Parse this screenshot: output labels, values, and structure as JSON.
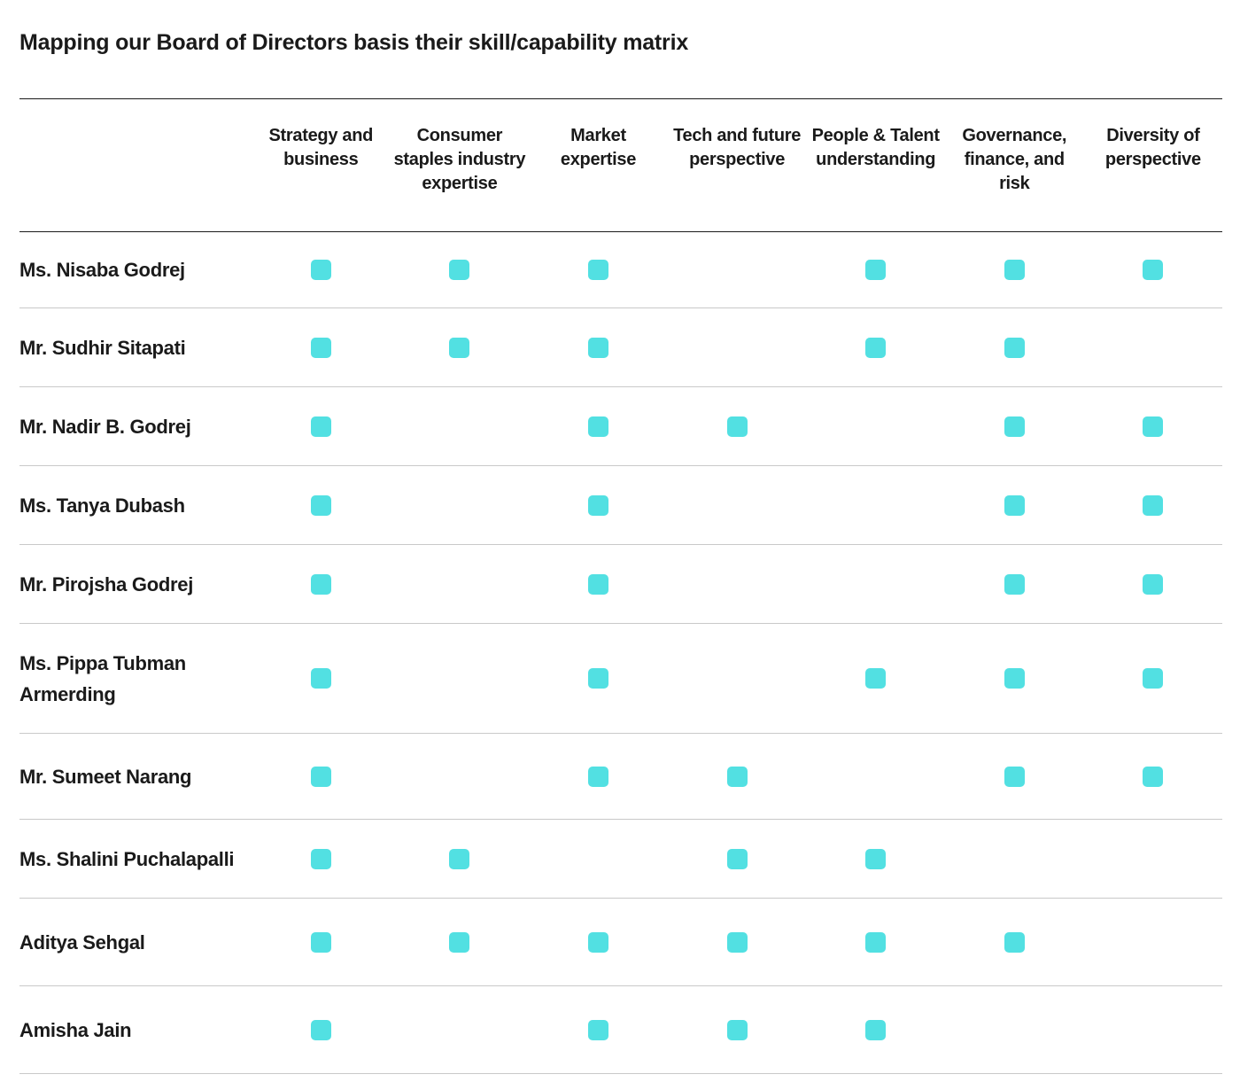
{
  "title": "Mapping our Board of Directors basis their skill/capability matrix",
  "accent_color": "#52e0e2",
  "columns": [
    "Strategy and business",
    "Consumer staples industry expertise",
    "Market expertise",
    "Tech and future perspective",
    "People & Talent understanding",
    "Governance, finance, and risk",
    "Diversity of perspective"
  ],
  "rows": [
    {
      "name": "Ms. Nisaba Godrej",
      "skills": [
        true,
        true,
        true,
        false,
        true,
        true,
        true
      ]
    },
    {
      "name": "Mr. Sudhir Sitapati",
      "skills": [
        true,
        true,
        true,
        false,
        true,
        true,
        false
      ]
    },
    {
      "name": "Mr. Nadir B. Godrej",
      "skills": [
        true,
        false,
        true,
        true,
        false,
        true,
        true
      ]
    },
    {
      "name": "Ms. Tanya Dubash",
      "skills": [
        true,
        false,
        true,
        false,
        false,
        true,
        true
      ]
    },
    {
      "name": "Mr. Pirojsha Godrej",
      "skills": [
        true,
        false,
        true,
        false,
        false,
        true,
        true
      ]
    },
    {
      "name": "Ms. Pippa Tubman Armerding",
      "skills": [
        true,
        false,
        true,
        false,
        true,
        true,
        true
      ]
    },
    {
      "name": "Mr. Sumeet Narang",
      "skills": [
        true,
        false,
        true,
        true,
        false,
        true,
        true
      ]
    },
    {
      "name": "Ms. Shalini Puchalapalli",
      "skills": [
        true,
        true,
        false,
        true,
        true,
        false,
        false
      ]
    },
    {
      "name": "Aditya Sehgal",
      "skills": [
        true,
        true,
        true,
        true,
        true,
        true,
        false
      ]
    },
    {
      "name": "Amisha Jain",
      "skills": [
        true,
        false,
        true,
        true,
        true,
        false,
        false
      ]
    }
  ]
}
